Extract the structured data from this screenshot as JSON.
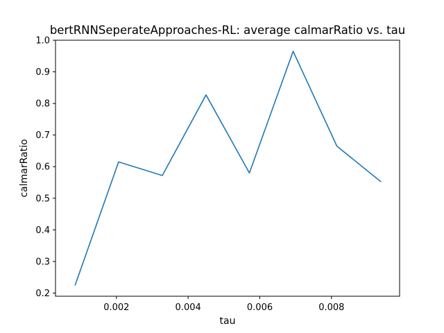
{
  "chart_data": {
    "type": "line",
    "title": "bertRNNSeperateApproaches-RL: average calmarRatio vs. tau",
    "xlabel": "tau",
    "ylabel": "calmarRatio",
    "xlim": [
      0.0003,
      0.0099
    ],
    "ylim": [
      0.19,
      1.0
    ],
    "x_ticks": [
      0.002,
      0.004,
      0.006,
      0.008
    ],
    "x_tick_labels": [
      "0.002",
      "0.004",
      "0.006",
      "0.008"
    ],
    "y_ticks": [
      0.2,
      0.3,
      0.4,
      0.5,
      0.6,
      0.7,
      0.8,
      0.9,
      1.0
    ],
    "y_tick_labels": [
      "0.2",
      "0.3",
      "0.4",
      "0.5",
      "0.6",
      "0.7",
      "0.8",
      "0.9",
      "1.0"
    ],
    "grid": false,
    "series": [
      {
        "color": "#1f77b4",
        "x": [
          0.00085,
          0.00206,
          0.00328,
          0.0045,
          0.00571,
          0.00693,
          0.00815,
          0.00937
        ],
        "y": [
          0.226,
          0.615,
          0.572,
          0.827,
          0.58,
          0.965,
          0.665,
          0.553
        ]
      }
    ]
  }
}
